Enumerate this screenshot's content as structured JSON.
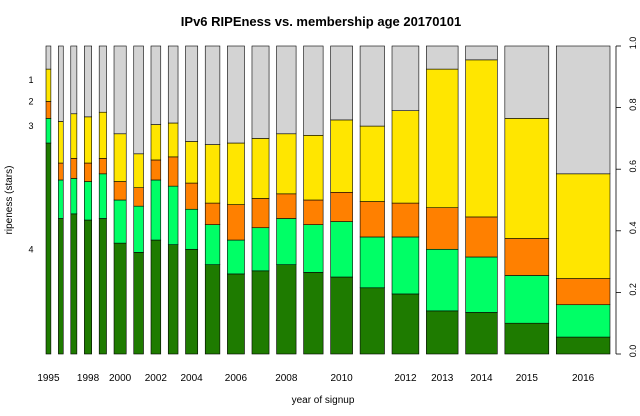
{
  "chart_data": {
    "type": "bar",
    "stacked": true,
    "variable_width": true,
    "title": "IPv6 RIPEness vs. membership age 20170101",
    "xlabel": "year of signup",
    "ylabel": "ripeness (stars)",
    "ylim": [
      0,
      1
    ],
    "grid": false,
    "legend": "none",
    "yticks": [
      "0.0",
      "0.2",
      "0.4",
      "0.6",
      "0.8",
      "1.0"
    ],
    "star_labels": [
      "1",
      "2",
      "3",
      "4"
    ],
    "star_label_positions": [
      0.89,
      0.82,
      0.74,
      0.34
    ],
    "series": [
      {
        "stars": "4",
        "color": "#1e7b00"
      },
      {
        "stars": "3",
        "color": "#00ff66"
      },
      {
        "stars": "2",
        "color": "#ff8000"
      },
      {
        "stars": "1",
        "color": "#ffe600"
      },
      {
        "stars": "0",
        "color": "#d3d3d3"
      }
    ],
    "bars": [
      {
        "year": "1995",
        "label": "1995",
        "weight": 2,
        "bounds": [
          0.685,
          0.765,
          0.82,
          0.925
        ]
      },
      {
        "year": "1996",
        "label": "",
        "weight": 2,
        "bounds": [
          0.44,
          0.565,
          0.62,
          0.755
        ]
      },
      {
        "year": "1997",
        "label": "",
        "weight": 2.5,
        "bounds": [
          0.455,
          0.57,
          0.635,
          0.78
        ]
      },
      {
        "year": "1998",
        "label": "1998",
        "weight": 3,
        "bounds": [
          0.435,
          0.56,
          0.62,
          0.77
        ]
      },
      {
        "year": "1999",
        "label": "",
        "weight": 3,
        "bounds": [
          0.44,
          0.585,
          0.635,
          0.785
        ]
      },
      {
        "year": "2000",
        "label": "2000",
        "weight": 5,
        "bounds": [
          0.36,
          0.5,
          0.56,
          0.715
        ]
      },
      {
        "year": "2001",
        "label": "",
        "weight": 4,
        "bounds": [
          0.33,
          0.48,
          0.54,
          0.65
        ]
      },
      {
        "year": "2002",
        "label": "2002",
        "weight": 4,
        "bounds": [
          0.37,
          0.565,
          0.63,
          0.745
        ]
      },
      {
        "year": "2003",
        "label": "",
        "weight": 4,
        "bounds": [
          0.355,
          0.545,
          0.64,
          0.75
        ]
      },
      {
        "year": "2004",
        "label": "2004",
        "weight": 5,
        "bounds": [
          0.34,
          0.47,
          0.555,
          0.69
        ]
      },
      {
        "year": "2005",
        "label": "",
        "weight": 6,
        "bounds": [
          0.29,
          0.42,
          0.49,
          0.68
        ]
      },
      {
        "year": "2006",
        "label": "2006",
        "weight": 7,
        "bounds": [
          0.26,
          0.37,
          0.485,
          0.685
        ]
      },
      {
        "year": "2007",
        "label": "",
        "weight": 7,
        "bounds": [
          0.27,
          0.41,
          0.505,
          0.7
        ]
      },
      {
        "year": "2008",
        "label": "2008",
        "weight": 8,
        "bounds": [
          0.29,
          0.44,
          0.52,
          0.715
        ]
      },
      {
        "year": "2009",
        "label": "",
        "weight": 8,
        "bounds": [
          0.265,
          0.42,
          0.5,
          0.71
        ]
      },
      {
        "year": "2010",
        "label": "2010",
        "weight": 9,
        "bounds": [
          0.25,
          0.43,
          0.525,
          0.76
        ]
      },
      {
        "year": "2011",
        "label": "",
        "weight": 10,
        "bounds": [
          0.215,
          0.38,
          0.495,
          0.74
        ]
      },
      {
        "year": "2012",
        "label": "2012",
        "weight": 11,
        "bounds": [
          0.195,
          0.38,
          0.49,
          0.79
        ]
      },
      {
        "year": "2013",
        "label": "2013",
        "weight": 13,
        "bounds": [
          0.14,
          0.34,
          0.475,
          0.925
        ]
      },
      {
        "year": "2014",
        "label": "2014",
        "weight": 13,
        "bounds": [
          0.135,
          0.315,
          0.445,
          0.955
        ]
      },
      {
        "year": "2015",
        "label": "2015",
        "weight": 18,
        "bounds": [
          0.1,
          0.255,
          0.375,
          0.765
        ]
      },
      {
        "year": "2016",
        "label": "2016",
        "weight": 22,
        "bounds": [
          0.055,
          0.16,
          0.245,
          0.585
        ]
      }
    ]
  }
}
